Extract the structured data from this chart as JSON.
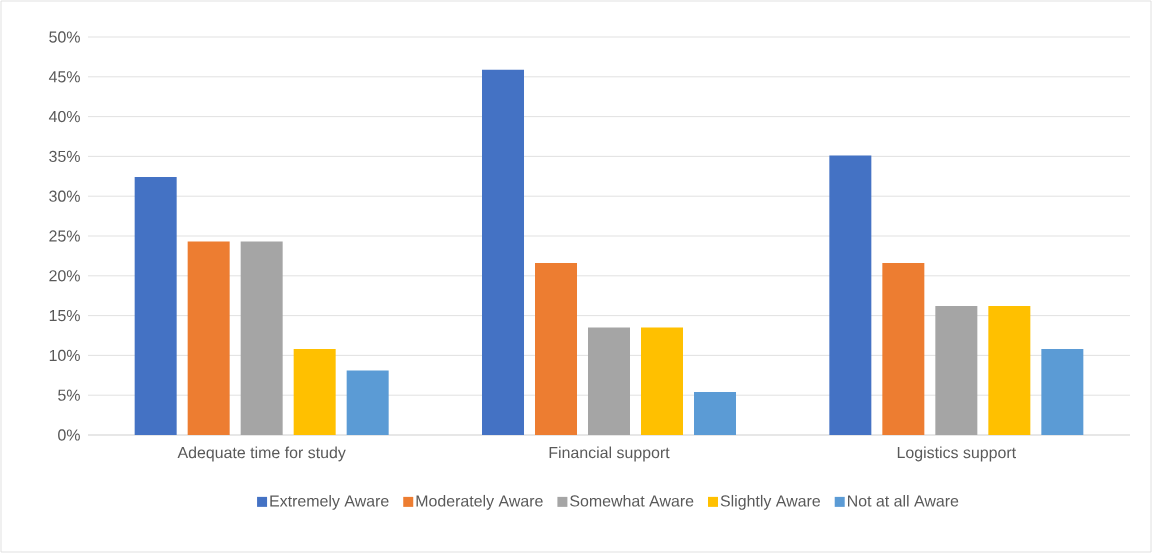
{
  "chart_data": {
    "type": "bar",
    "categories": [
      "Adequate time for study",
      "Financial support",
      "Logistics support"
    ],
    "series": [
      {
        "name": "Extremely Aware",
        "color": "#4472c4",
        "values": [
          32.4,
          45.9,
          35.1
        ]
      },
      {
        "name": "Moderately Aware",
        "color": "#ed7d31",
        "values": [
          24.3,
          21.6,
          21.6
        ]
      },
      {
        "name": "Somewhat Aware",
        "color": "#a5a5a5",
        "values": [
          24.3,
          13.5,
          16.2
        ]
      },
      {
        "name": "Slightly Aware",
        "color": "#ffc000",
        "values": [
          10.8,
          13.5,
          16.2
        ]
      },
      {
        "name": "Not at all Aware",
        "color": "#5b9bd5",
        "values": [
          8.1,
          5.4,
          10.8
        ]
      }
    ],
    "ylim": [
      0,
      50
    ],
    "yticks": [
      {
        "value": 0,
        "label": "0%"
      },
      {
        "value": 5,
        "label": "5%"
      },
      {
        "value": 10,
        "label": "10%"
      },
      {
        "value": 15,
        "label": "15%"
      },
      {
        "value": 20,
        "label": "20%"
      },
      {
        "value": 25,
        "label": "25%"
      },
      {
        "value": 30,
        "label": "30%"
      },
      {
        "value": 35,
        "label": "35%"
      },
      {
        "value": 40,
        "label": "40%"
      },
      {
        "value": 45,
        "label": "45%"
      },
      {
        "value": 50,
        "label": "50%"
      }
    ],
    "grid": "y",
    "legend": "bottom"
  }
}
